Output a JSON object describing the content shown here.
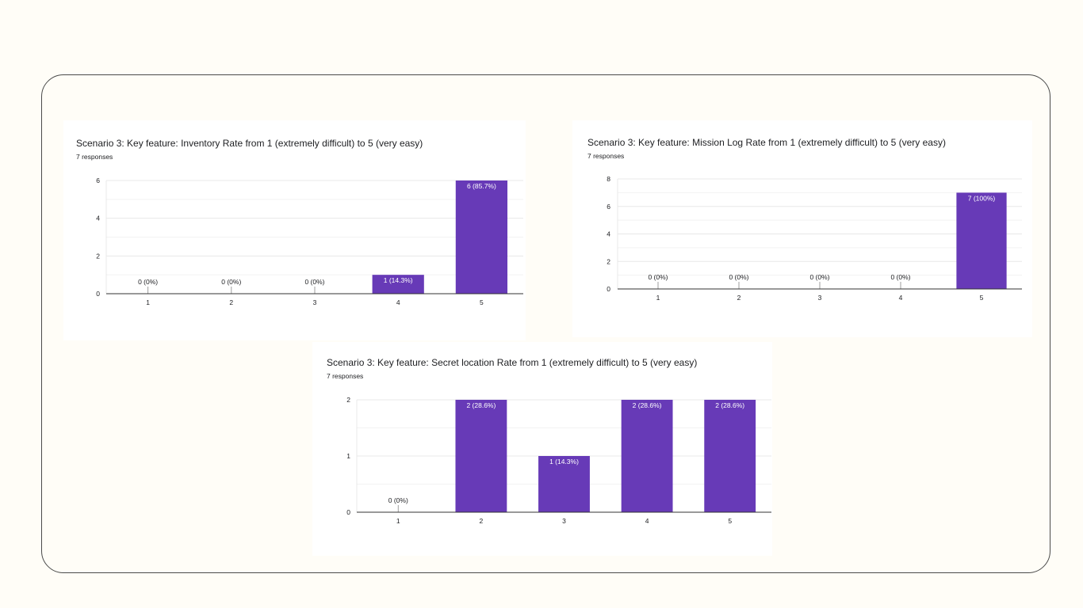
{
  "colors": {
    "bar": "#673ab7",
    "bar_label": "#ffffff",
    "zero_label": "#202124",
    "grid": "#e8e8e8",
    "axis": "#333333",
    "text": "#202124"
  },
  "chart_data": [
    {
      "type": "bar",
      "title": "Scenario 3: Key feature: Inventory  Rate from 1 (extremely difficult) to 5 (very easy)",
      "subtitle": "7 responses",
      "categories": [
        "1",
        "2",
        "3",
        "4",
        "5"
      ],
      "values": [
        0,
        0,
        0,
        1,
        6
      ],
      "labels": [
        "0 (0%)",
        "0 (0%)",
        "0 (0%)",
        "1 (14.3%)",
        "6 (85.7%)"
      ],
      "yticks": [
        0,
        2,
        4,
        6
      ],
      "ylim": [
        0,
        6
      ],
      "grid": true
    },
    {
      "type": "bar",
      "title": "Scenario 3: Key feature: Mission Log  Rate from 1 (extremely difficult) to 5 (very easy)",
      "subtitle": "7 responses",
      "categories": [
        "1",
        "2",
        "3",
        "4",
        "5"
      ],
      "values": [
        0,
        0,
        0,
        0,
        7
      ],
      "labels": [
        "0 (0%)",
        "0 (0%)",
        "0 (0%)",
        "0 (0%)",
        "7 (100%)"
      ],
      "yticks": [
        0,
        2,
        4,
        6,
        8
      ],
      "ylim": [
        0,
        8
      ],
      "grid": true
    },
    {
      "type": "bar",
      "title": "Scenario 3: Key feature: Secret location  Rate from 1 (extremely difficult) to 5 (very easy)",
      "subtitle": "7 responses",
      "categories": [
        "1",
        "2",
        "3",
        "4",
        "5"
      ],
      "values": [
        0,
        2,
        1,
        2,
        2
      ],
      "labels": [
        "0 (0%)",
        "2 (28.6%)",
        "1 (14.3%)",
        "2 (28.6%)",
        "2 (28.6%)"
      ],
      "yticks": [
        0,
        1,
        2
      ],
      "ylim": [
        0,
        2
      ],
      "grid": true
    }
  ]
}
